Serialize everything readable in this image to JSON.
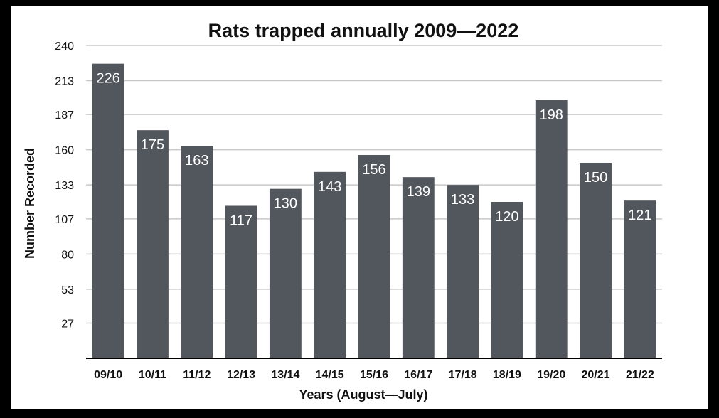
{
  "chart_data": {
    "type": "bar",
    "title": "Rats trapped annually 2009—2022",
    "xlabel": "Years (August—July)",
    "ylabel": "Number Recorded",
    "categories": [
      "09/10",
      "10/11",
      "11/12",
      "12/13",
      "13/14",
      "14/15",
      "15/16",
      "16/17",
      "17/18",
      "18/19",
      "19/20",
      "20/21",
      "21/22"
    ],
    "values": [
      226,
      175,
      163,
      117,
      130,
      143,
      156,
      139,
      133,
      120,
      198,
      150,
      121
    ],
    "yticks": [
      "240",
      "213",
      "187",
      "160",
      "133",
      "107",
      "80",
      "53",
      "27"
    ],
    "ylim": [
      0,
      240
    ],
    "grid": true,
    "colors": {
      "bar": "#52565d",
      "grid": "#c8c8c8",
      "axis": "#000000",
      "background": "#ffffff",
      "frame": "#000000"
    }
  }
}
